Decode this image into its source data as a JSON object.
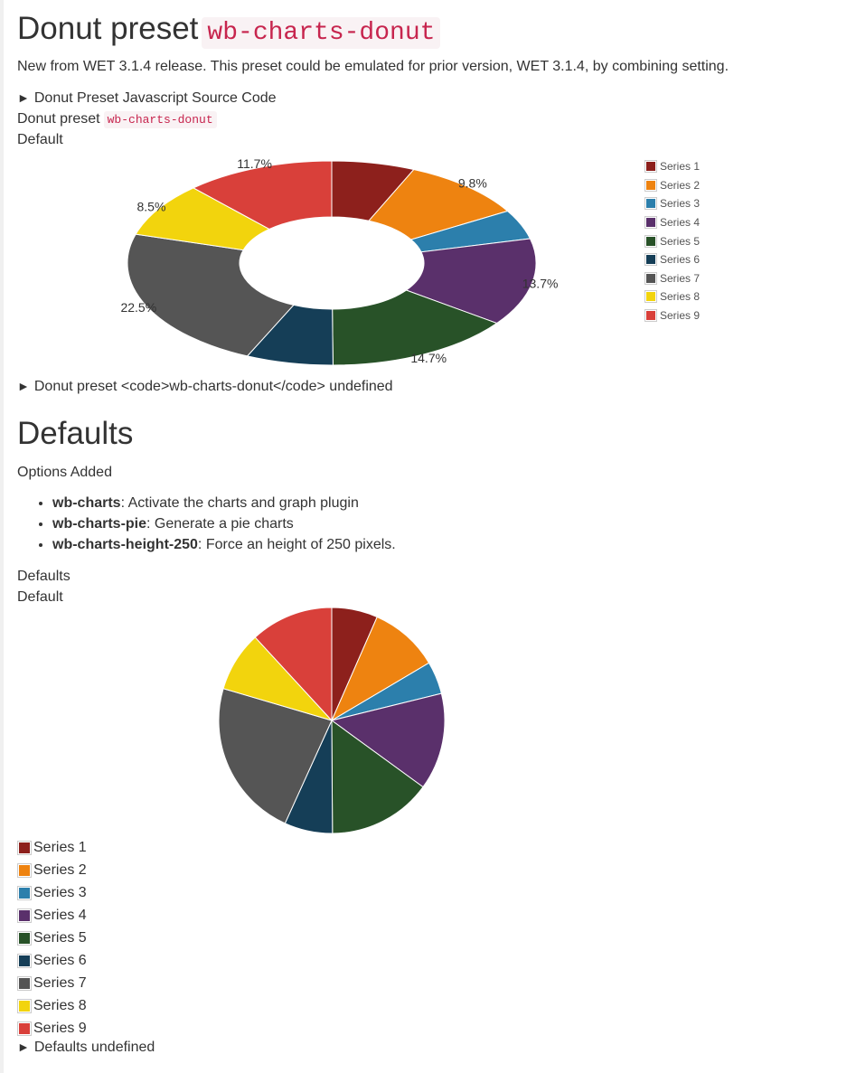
{
  "section1": {
    "title": "Donut preset",
    "title_code": "wb-charts-donut",
    "intro": "New from WET 3.1.4 release. This preset could be emulated for prior version, WET 3.1.4, by combining setting.",
    "source_summary": "Donut Preset Javascript Source Code",
    "caption_text": "Donut preset",
    "caption_code": "wb-charts-donut",
    "subcaption": "Default",
    "table_summary": "Donut preset <code>wb-charts-donut</code> undefined"
  },
  "section2": {
    "title": "Defaults",
    "options_heading": "Options Added",
    "options": [
      {
        "key": "wb-charts",
        "desc": ": Activate the charts and graph plugin"
      },
      {
        "key": "wb-charts-pie",
        "desc": ": Generate a pie charts"
      },
      {
        "key": "wb-charts-height-250",
        "desc": ": Force an height of 250 pixels."
      }
    ],
    "caption_text": "Defaults",
    "subcaption": "Default",
    "table_summary": "Defaults undefined"
  },
  "ui": {
    "expand_glyph": "►"
  },
  "chart_data": [
    {
      "type": "pie",
      "variant": "donut",
      "categories": [
        "Series 1",
        "Series 2",
        "Series 3",
        "Series 4",
        "Series 5",
        "Series 6",
        "Series 7",
        "Series 8",
        "Series 9"
      ],
      "values": [
        6.5,
        9.8,
        4.6,
        13.7,
        14.7,
        6.8,
        22.5,
        8.5,
        11.7
      ],
      "data_labels": [
        "",
        "9.8%",
        "",
        "13.7%",
        "14.7%",
        "",
        "22.5%",
        "8.5%",
        "11.7%"
      ],
      "colors": [
        "#8d201c",
        "#ee8310",
        "#2c7fac",
        "#5a306b",
        "#285228",
        "#153e57",
        "#555555",
        "#f2d40d",
        "#d9403a"
      ],
      "legend": "right"
    },
    {
      "type": "pie",
      "categories": [
        "Series 1",
        "Series 2",
        "Series 3",
        "Series 4",
        "Series 5",
        "Series 6",
        "Series 7",
        "Series 8",
        "Series 9"
      ],
      "values": [
        6.5,
        9.8,
        4.6,
        13.7,
        14.7,
        6.8,
        22.5,
        8.5,
        11.7
      ],
      "colors": [
        "#8d201c",
        "#ee8310",
        "#2c7fac",
        "#5a306b",
        "#285228",
        "#153e57",
        "#555555",
        "#f2d40d",
        "#d9403a"
      ],
      "legend": "bottom"
    }
  ]
}
